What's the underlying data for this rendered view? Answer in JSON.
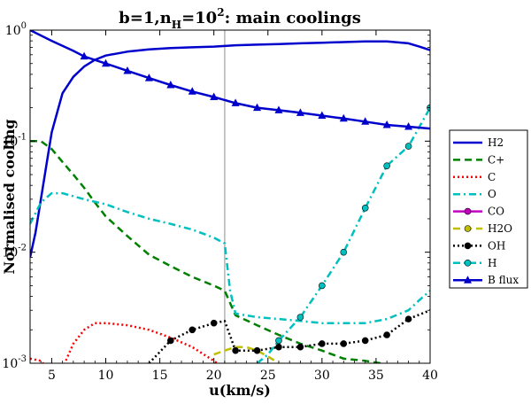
{
  "chart_data": {
    "type": "line",
    "title": "b=1,n_H=10^2: main coolings",
    "title_parts": {
      "a": "b=1,n",
      "sub": "H",
      "b": "=10",
      "sup": "2",
      "c": ": main coolings"
    },
    "xlabel": "u(km/s)",
    "ylabel": "Normalised cooling",
    "xlim": [
      3,
      40
    ],
    "ylim": [
      0.001,
      1
    ],
    "yscale": "log",
    "xticks": [
      5,
      10,
      15,
      20,
      25,
      30,
      35,
      40
    ],
    "xtick_labels": [
      "5",
      "10",
      "15",
      "20",
      "25",
      "30",
      "35",
      "40"
    ],
    "yticks": [
      1,
      0.1,
      0.01,
      0.001
    ],
    "ytick_labels": [
      {
        "base": "10",
        "exp": "0"
      },
      {
        "base": "10",
        "exp": "-1"
      },
      {
        "base": "10",
        "exp": "-2"
      },
      {
        "base": "10",
        "exp": "-3"
      }
    ],
    "vline": {
      "x": 21,
      "color": "#b3b3b3"
    },
    "legend_position": "outside-right",
    "series": [
      {
        "name": "H2",
        "color": "#0000cc",
        "dash": "solid",
        "marker": "none",
        "x": [
          3,
          3.5,
          4,
          4.5,
          5,
          6,
          7,
          8,
          9,
          10,
          12,
          14,
          16,
          18,
          20,
          21,
          22,
          24,
          26,
          28,
          30,
          32,
          34,
          36,
          38,
          39,
          40
        ],
        "y": [
          0.009,
          0.015,
          0.03,
          0.06,
          0.12,
          0.27,
          0.38,
          0.47,
          0.54,
          0.59,
          0.64,
          0.67,
          0.69,
          0.7,
          0.71,
          0.72,
          0.73,
          0.74,
          0.75,
          0.76,
          0.77,
          0.78,
          0.79,
          0.79,
          0.76,
          0.71,
          0.66
        ]
      },
      {
        "name": "C+",
        "color": "#008000",
        "dash": "dashed",
        "marker": "none",
        "x": [
          3,
          4,
          5,
          6,
          7,
          8,
          9,
          10,
          12,
          14,
          16,
          18,
          20,
          21,
          22,
          24,
          26,
          28,
          30,
          32,
          34,
          36,
          38,
          40
        ],
        "y": [
          0.1,
          0.1,
          0.085,
          0.065,
          0.05,
          0.038,
          0.028,
          0.021,
          0.014,
          0.0095,
          0.0075,
          0.006,
          0.005,
          0.0045,
          0.0027,
          0.0022,
          0.0018,
          0.0015,
          0.0013,
          0.0011,
          0.00105,
          0.00098,
          0.0009,
          0.00085
        ]
      },
      {
        "name": "C",
        "color": "#ff0000",
        "dash": "dotted",
        "marker": "none",
        "x": [
          3,
          4,
          5,
          6,
          7,
          8,
          9,
          10,
          12,
          14,
          16,
          18,
          20,
          21
        ],
        "y": [
          0.0011,
          0.00105,
          0.0008,
          0.0009,
          0.0015,
          0.002,
          0.0023,
          0.0023,
          0.0022,
          0.002,
          0.0017,
          0.0014,
          0.00105,
          0.0009
        ]
      },
      {
        "name": "O",
        "color": "#00bfbf",
        "dash": "dashdot",
        "marker": "none",
        "x": [
          3,
          4,
          5,
          6,
          8,
          10,
          12,
          14,
          16,
          18,
          20,
          21,
          21.5,
          22,
          24,
          26,
          28,
          30,
          32,
          34,
          36,
          38,
          39,
          40
        ],
        "y": [
          0.018,
          0.028,
          0.034,
          0.034,
          0.03,
          0.027,
          0.023,
          0.02,
          0.018,
          0.016,
          0.0135,
          0.012,
          0.0045,
          0.0028,
          0.0026,
          0.0025,
          0.0024,
          0.0023,
          0.0023,
          0.0023,
          0.0025,
          0.003,
          0.0037,
          0.0045
        ]
      },
      {
        "name": "CO",
        "color": "#bf00bf",
        "dash": "solid",
        "marker": "circle",
        "x": [],
        "y": []
      },
      {
        "name": "H2O",
        "color": "#bfbf00",
        "dash": "dashed",
        "marker": "circle",
        "x": [
          20,
          21,
          22,
          23,
          24,
          25,
          26
        ],
        "y": [
          0.0012,
          0.0013,
          0.0014,
          0.0014,
          0.0013,
          0.00115,
          0.001
        ]
      },
      {
        "name": "OH",
        "color": "#000000",
        "dash": "dotted",
        "marker": "circle",
        "x": [
          14,
          16,
          18,
          20,
          21,
          22,
          24,
          26,
          28,
          30,
          32,
          34,
          36,
          38,
          40
        ],
        "y": [
          0.001,
          0.0016,
          0.002,
          0.0023,
          0.0024,
          0.0013,
          0.0013,
          0.0014,
          0.0014,
          0.0015,
          0.0015,
          0.0016,
          0.0018,
          0.0025,
          0.003
        ],
        "markers_x": [
          16,
          18,
          20,
          22,
          24,
          26,
          28,
          30,
          32,
          34,
          36,
          38
        ]
      },
      {
        "name": "H",
        "color": "#00bfbf",
        "dash": "dashdot",
        "marker": "circle",
        "x": [
          24,
          25,
          26,
          28,
          30,
          32,
          34,
          36,
          38,
          40
        ],
        "y": [
          0.001,
          0.0012,
          0.0016,
          0.0026,
          0.005,
          0.01,
          0.025,
          0.06,
          0.09,
          0.2
        ],
        "markers_x": [
          26,
          28,
          30,
          32,
          34,
          36,
          38,
          40
        ]
      },
      {
        "name": "B flux",
        "color": "#0000cc",
        "dash": "solid",
        "marker": "triangle",
        "x": [
          3,
          5,
          7,
          8,
          10,
          12,
          14,
          16,
          18,
          20,
          22,
          24,
          26,
          28,
          30,
          32,
          34,
          36,
          38,
          40
        ],
        "y": [
          1.0,
          0.8,
          0.65,
          0.58,
          0.5,
          0.43,
          0.37,
          0.32,
          0.28,
          0.25,
          0.22,
          0.2,
          0.19,
          0.18,
          0.17,
          0.16,
          0.15,
          0.14,
          0.135,
          0.13
        ],
        "markers_x": [
          8,
          10,
          12,
          14,
          16,
          18,
          20,
          22,
          24,
          26,
          28,
          30,
          32,
          34,
          36,
          38
        ]
      }
    ]
  }
}
